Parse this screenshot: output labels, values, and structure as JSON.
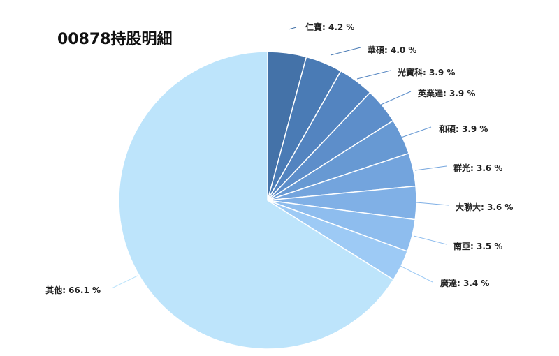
{
  "chart_data": {
    "type": "pie",
    "title": "00878持股明細",
    "start_angle_deg": 0,
    "direction": "clockwise",
    "slices": [
      {
        "label": "仁寶",
        "value": 4.2,
        "color": "#4472a8",
        "display": "仁寶: 4.2 %"
      },
      {
        "label": "華碩",
        "value": 4.0,
        "color": "#4a7bb5",
        "display": "華碩: 4.0 %"
      },
      {
        "label": "光寶科",
        "value": 3.9,
        "color": "#5384c0",
        "display": "光寶科: 3.9 %"
      },
      {
        "label": "英業達",
        "value": 3.9,
        "color": "#5d8eca",
        "display": "英業達: 3.9 %"
      },
      {
        "label": "和碩",
        "value": 3.9,
        "color": "#6799d3",
        "display": "和碩: 3.9 %"
      },
      {
        "label": "群光",
        "value": 3.6,
        "color": "#73a4dd",
        "display": "群光: 3.6 %"
      },
      {
        "label": "大聯大",
        "value": 3.6,
        "color": "#80b0e6",
        "display": "大聯大: 3.6 %"
      },
      {
        "label": "南亞",
        "value": 3.5,
        "color": "#8ebdee",
        "display": "南亞: 3.5 %"
      },
      {
        "label": "廣達",
        "value": 3.4,
        "color": "#9dcaf5",
        "display": "廣達: 3.4 %"
      },
      {
        "label": "其他",
        "value": 66.1,
        "color": "#bde4fb",
        "display": "其他: 66.1 %"
      }
    ]
  }
}
